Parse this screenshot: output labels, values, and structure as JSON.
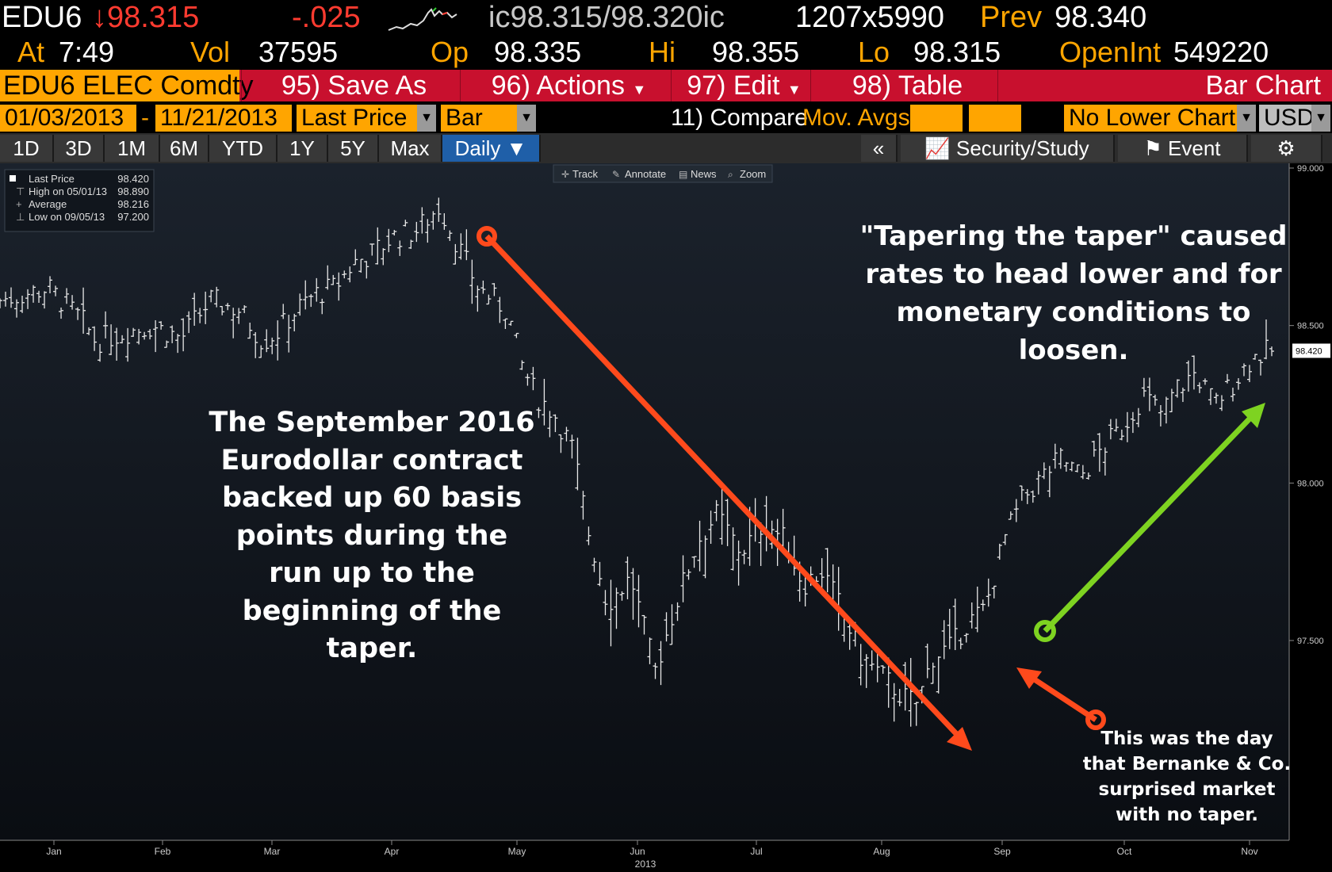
{
  "ticker": {
    "symbol": "EDU6",
    "last": "↓98.315",
    "change": "-.025",
    "bid_ask": "ic98.315/98.320ic",
    "size": "1207x5990",
    "prev_label": "Prev",
    "prev": "98.340",
    "at_label": "At",
    "time": "7:49",
    "vol_label": "Vol",
    "vol": "37595",
    "open_label": "Op",
    "open": "98.335",
    "hi_label": "Hi",
    "hi": "98.355",
    "lo_label": "Lo",
    "lo": "98.315",
    "oi_label": "OpenInt",
    "oi": "549220"
  },
  "menu": {
    "security": "EDU6 ELEC Comdty",
    "save_as": "95) Save As",
    "actions": "96) Actions",
    "edit": "97) Edit",
    "table": "98) Table",
    "view": "Bar Chart"
  },
  "inputs": {
    "start_date": "01/03/2013",
    "sep": "-",
    "end_date": "11/21/2013",
    "field": "Last Price",
    "style": "Bar",
    "compare": "11) Compare",
    "mov_avgs": "Mov. Avgs",
    "lower": "No Lower Chart",
    "currency": "USD"
  },
  "tabs": {
    "items": [
      "1D",
      "3D",
      "1M",
      "6M",
      "YTD",
      "1Y",
      "5Y",
      "Max"
    ],
    "active": "Daily ▼",
    "collapse": "«",
    "security_study": "Security/Study",
    "event": "Event"
  },
  "toolbar": {
    "track": "Track",
    "annotate": "Annotate",
    "news": "News",
    "zoom": "Zoom"
  },
  "legend": {
    "last_label": "Last Price",
    "last": "98.420",
    "high_label": "High on 05/01/13",
    "high": "98.890",
    "avg_label": "Average",
    "avg": "98.216",
    "low_label": "Low on 09/05/13",
    "low": "97.200"
  },
  "annotations": {
    "left": [
      "The September 2016",
      "Eurodollar contract",
      "backed up 60 basis",
      "points during the",
      "run up to the",
      "beginning of the",
      "taper."
    ],
    "right": [
      "\"Tapering the taper\" caused",
      "rates to head lower and for",
      "monetary conditions to",
      "loosen."
    ],
    "bottom": [
      "This was the day",
      "that Bernanke & Co.",
      "surprised market",
      "with no taper."
    ]
  },
  "colors": {
    "bg": "#000000",
    "accent": "#ffa500",
    "menu_red": "#c8102e",
    "arrow_red": "#ff4a1c",
    "arrow_green": "#7ed321",
    "price": "#ffffff"
  },
  "chart_data": {
    "type": "bar",
    "title": "",
    "xlabel": "2013",
    "ylabel": "",
    "ylim": [
      97.25,
      99.0
    ],
    "yticks": [
      97.5,
      98.0,
      98.5,
      99.0
    ],
    "ytick_labels": [
      "97.500",
      "98.000",
      "98.500",
      "99.000"
    ],
    "last_marker": "98.420",
    "months": [
      "Jan",
      "Feb",
      "Mar",
      "Apr",
      "May",
      "Jun",
      "Jul",
      "Aug",
      "Sep",
      "Oct",
      "Nov"
    ],
    "year_label": "2013",
    "series": [
      {
        "values": [
          {
            "m": 0.0,
            "c": 98.58
          },
          {
            "m": 0.5,
            "c": 98.62
          },
          {
            "m": 0.85,
            "c": 98.52
          },
          {
            "m": 1.0,
            "c": 98.45
          },
          {
            "m": 1.3,
            "c": 98.48
          },
          {
            "m": 1.6,
            "c": 98.5
          },
          {
            "m": 1.9,
            "c": 98.46
          },
          {
            "m": 2.2,
            "c": 98.58
          },
          {
            "m": 2.5,
            "c": 98.55
          },
          {
            "m": 2.75,
            "c": 98.45
          },
          {
            "m": 2.9,
            "c": 98.48
          },
          {
            "m": 3.1,
            "c": 98.55
          },
          {
            "m": 3.3,
            "c": 98.6
          },
          {
            "m": 3.5,
            "c": 98.62
          },
          {
            "m": 3.7,
            "c": 98.7
          },
          {
            "m": 3.9,
            "c": 98.73
          },
          {
            "m": 4.1,
            "c": 98.78
          },
          {
            "m": 4.35,
            "c": 98.8
          },
          {
            "m": 4.6,
            "c": 98.88
          },
          {
            "m": 4.75,
            "c": 98.78
          },
          {
            "m": 5.0,
            "c": 98.62
          },
          {
            "m": 5.3,
            "c": 98.55
          },
          {
            "m": 5.45,
            "c": 98.38
          },
          {
            "m": 5.6,
            "c": 98.28
          },
          {
            "m": 5.8,
            "c": 98.22
          },
          {
            "m": 6.0,
            "c": 98.1
          },
          {
            "m": 6.15,
            "c": 97.85
          },
          {
            "m": 6.35,
            "c": 97.62
          },
          {
            "m": 6.6,
            "c": 97.7
          },
          {
            "m": 6.85,
            "c": 97.4
          },
          {
            "m": 7.05,
            "c": 97.6
          },
          {
            "m": 7.3,
            "c": 97.82
          },
          {
            "m": 7.5,
            "c": 97.9
          },
          {
            "m": 7.75,
            "c": 97.78
          },
          {
            "m": 8.0,
            "c": 97.88
          },
          {
            "m": 8.2,
            "c": 97.82
          },
          {
            "m": 8.4,
            "c": 97.68
          },
          {
            "m": 8.6,
            "c": 97.72
          },
          {
            "m": 8.8,
            "c": 97.6
          },
          {
            "m": 9.0,
            "c": 97.45
          },
          {
            "m": 9.25,
            "c": 97.38
          },
          {
            "m": 9.45,
            "c": 97.32
          },
          {
            "m": 9.6,
            "c": 97.3
          },
          {
            "m": 9.75,
            "c": 97.45
          },
          {
            "m": 9.95,
            "c": 97.48
          },
          {
            "m": 10.1,
            "c": 97.55
          },
          {
            "m": 10.3,
            "c": 97.6
          },
          {
            "m": 10.5,
            "c": 97.82
          },
          {
            "m": 10.7,
            "c": 97.95
          },
          {
            "m": 10.9,
            "c": 98.02
          },
          {
            "m": 11.1,
            "c": 98.08
          },
          {
            "m": 11.3,
            "c": 98.02
          },
          {
            "m": 11.5,
            "c": 98.1
          },
          {
            "m": 11.75,
            "c": 98.18
          },
          {
            "m": 11.95,
            "c": 98.28
          },
          {
            "m": 12.15,
            "c": 98.22
          },
          {
            "m": 12.3,
            "c": 98.3
          },
          {
            "m": 12.5,
            "c": 98.35
          },
          {
            "m": 12.7,
            "c": 98.25
          },
          {
            "m": 12.9,
            "c": 98.32
          },
          {
            "m": 13.1,
            "c": 98.4
          },
          {
            "m": 13.3,
            "c": 98.42
          }
        ]
      }
    ]
  }
}
